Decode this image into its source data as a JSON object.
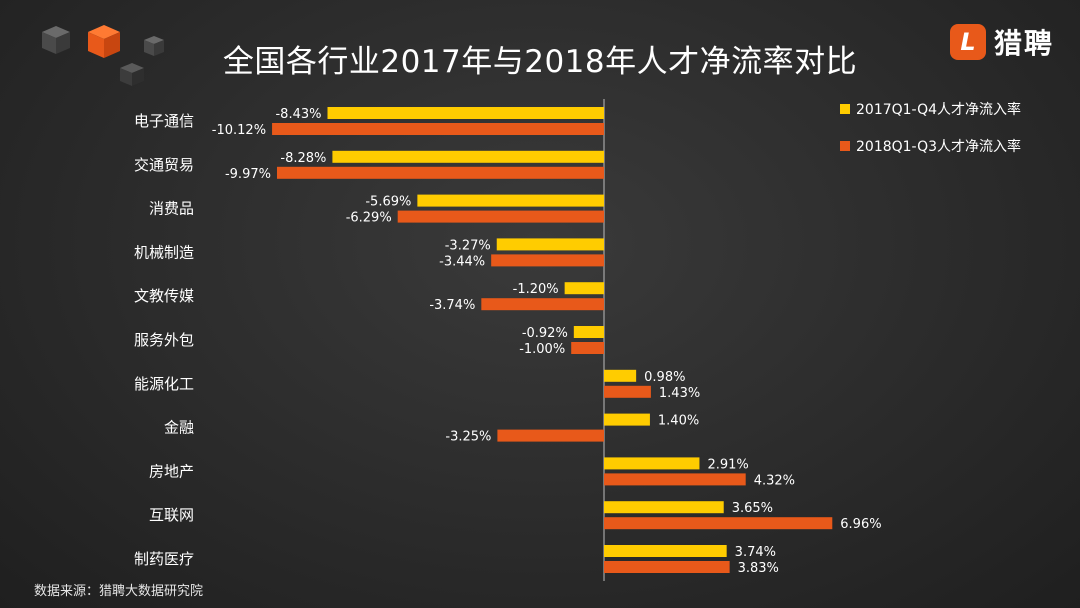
{
  "page": {
    "title": "全国各行业2017年与2018年人才净流率对比",
    "source": "数据来源：猎聘大数据研究院",
    "brand": {
      "mark": "L",
      "name": "猎聘"
    }
  },
  "colors": {
    "series2017": "#ffcc00",
    "series2018": "#e8591a",
    "accent": "#e8591a"
  },
  "chart_data": {
    "type": "bar",
    "orientation": "horizontal",
    "title": "全国各行业2017年与2018年人才净流率对比",
    "categories": [
      "电子通信",
      "交通贸易",
      "消费品",
      "机械制造",
      "文教传媒",
      "服务外包",
      "能源化工",
      "金融",
      "房地产",
      "互联网",
      "制药医疗"
    ],
    "series": [
      {
        "name": "2017Q1-Q4人才净流入率",
        "color": "#ffcc00",
        "values": [
          -8.43,
          -8.28,
          -5.69,
          -3.27,
          -1.2,
          -0.92,
          0.98,
          1.4,
          2.91,
          3.65,
          3.74
        ],
        "labels": [
          "-8.43%",
          "-8.28%",
          "-5.69%",
          "-3.27%",
          "-1.20%",
          "-0.92%",
          "0.98%",
          "1.40%",
          "2.91%",
          "3.65%",
          "3.74%"
        ]
      },
      {
        "name": "2018Q1-Q3人才净流入率",
        "color": "#e8591a",
        "values": [
          -10.12,
          -9.97,
          -6.29,
          -3.44,
          -3.74,
          -1.0,
          1.43,
          -3.25,
          4.32,
          6.96,
          3.83
        ],
        "labels": [
          "-10.12%",
          "-9.97%",
          "-6.29%",
          "-3.44%",
          "-3.74%",
          "-1.00%",
          "1.43%",
          "-3.25%",
          "4.32%",
          "6.96%",
          "3.83%"
        ]
      }
    ],
    "legend": "top-right",
    "grid": false,
    "xlim": [
      -10.12,
      6.96
    ]
  }
}
